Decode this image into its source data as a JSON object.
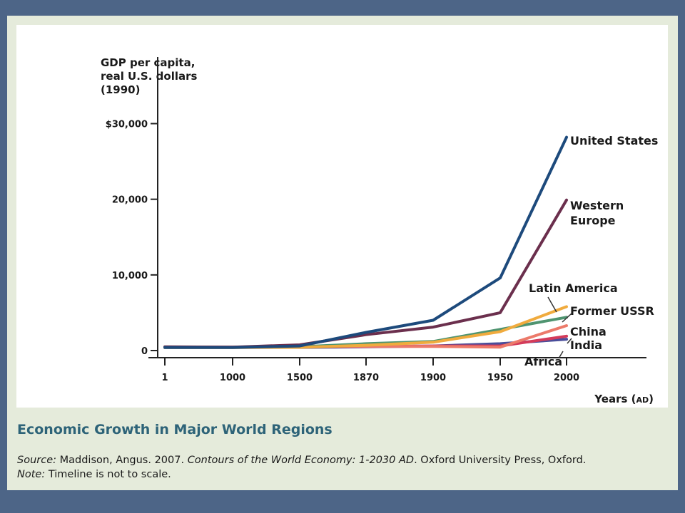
{
  "chart_data": {
    "type": "line",
    "title": "Economic Growth in Major World Regions",
    "ylabel": [
      "GDP per capita,",
      "real U.S. dollars",
      "(1990)"
    ],
    "xlabel": "Years (AD)",
    "x_ticks": [
      "1",
      "1000",
      "1500",
      "1870",
      "1900",
      "1950",
      "2000"
    ],
    "y_ticks": [
      {
        "value": 0,
        "label": "0"
      },
      {
        "value": 10000,
        "label": "10,000"
      },
      {
        "value": 20000,
        "label": "20,000"
      },
      {
        "value": 30000,
        "label": "$30,000"
      }
    ],
    "ylim": [
      0,
      31000
    ],
    "grid": false,
    "legend": "inline labels at line ends",
    "series": [
      {
        "name": "United States",
        "color": "#1d4a7c",
        "values": [
          400,
          400,
          600,
          2400,
          4000,
          9600,
          28200
        ]
      },
      {
        "name": "Western Europe",
        "color": "#6b2f4d",
        "values": [
          500,
          450,
          750,
          2100,
          3100,
          5000,
          19900
        ]
      },
      {
        "name": "Latin America",
        "color": "#f0ab3e",
        "values": [
          400,
          400,
          420,
          700,
          1100,
          2500,
          5800
        ]
      },
      {
        "name": "Former USSR",
        "color": "#4f9470",
        "values": [
          400,
          400,
          500,
          900,
          1200,
          2800,
          4400
        ]
      },
      {
        "name": "China",
        "color": "#ec7a6a",
        "values": [
          450,
          450,
          600,
          550,
          550,
          450,
          3300
        ]
      },
      {
        "name": "India",
        "color": "#d43b5a",
        "values": [
          450,
          450,
          550,
          550,
          600,
          600,
          1900
        ]
      },
      {
        "name": "Africa",
        "color": "#4a4e9a",
        "values": [
          430,
          430,
          410,
          500,
          600,
          900,
          1500
        ]
      }
    ]
  },
  "caption": {
    "title": "Economic Growth in Major World Regions",
    "source_label": "Source:",
    "source_author": "Maddison, Angus. 2007.",
    "source_title": "Contours of the World Economy: 1-2030 AD",
    "source_publisher": ". Oxford University Press, Oxford.",
    "note_label": "Note:",
    "note_text": "Timeline is not to scale."
  }
}
